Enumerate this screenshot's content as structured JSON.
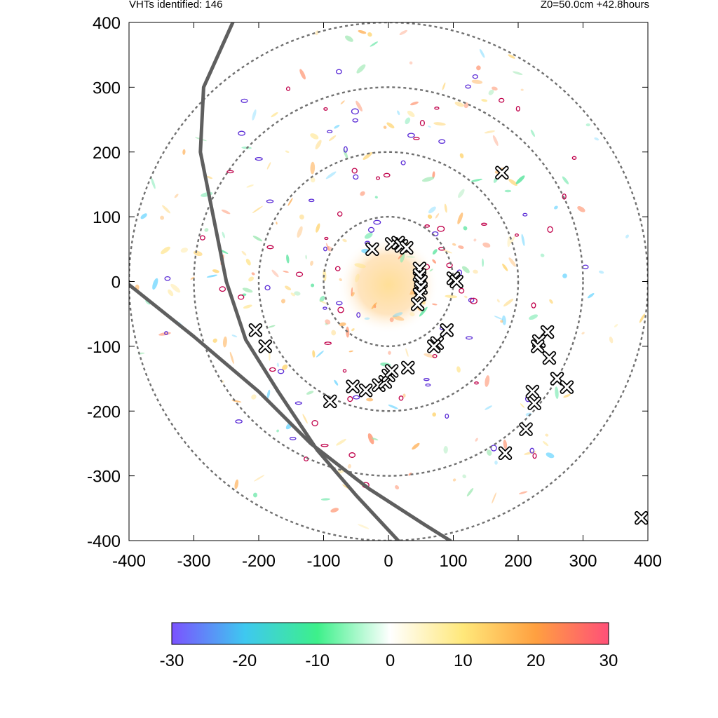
{
  "header": {
    "left_text": "VHTs identified: 146",
    "right_text": "Z0=50.0cm  +42.8hours"
  },
  "chart_data": {
    "type": "scatter",
    "title": "",
    "xlabel": "",
    "ylabel": "",
    "xlim": [
      -400,
      400
    ],
    "ylim": [
      -400,
      400
    ],
    "x_ticks": [
      -400,
      -300,
      -200,
      -100,
      0,
      100,
      200,
      300,
      400
    ],
    "y_ticks": [
      -400,
      -300,
      -200,
      -100,
      0,
      100,
      200,
      300,
      400
    ],
    "x_tick_labels": [
      "-400",
      "-300",
      "-200",
      "-100",
      "0",
      "100",
      "200",
      "300",
      "400"
    ],
    "y_tick_labels": [
      "-400",
      "-300",
      "-200",
      "-100",
      "0",
      "100",
      "200",
      "300",
      "400"
    ],
    "grid": false,
    "range_rings_radius": [
      100,
      200,
      300,
      400
    ],
    "vht_count": 146,
    "vht_markers": [
      [
        -25,
        50
      ],
      [
        5,
        58
      ],
      [
        15,
        60
      ],
      [
        20,
        55
      ],
      [
        28,
        52
      ],
      [
        48,
        20
      ],
      [
        48,
        10
      ],
      [
        50,
        0
      ],
      [
        50,
        -10
      ],
      [
        48,
        -20
      ],
      [
        45,
        -35
      ],
      [
        100,
        5
      ],
      [
        105,
        0
      ],
      [
        90,
        -75
      ],
      [
        75,
        -95
      ],
      [
        70,
        -100
      ],
      [
        -205,
        -75
      ],
      [
        -190,
        -100
      ],
      [
        -90,
        -185
      ],
      [
        -55,
        -162
      ],
      [
        -35,
        -168
      ],
      [
        -15,
        -160
      ],
      [
        -5,
        -155
      ],
      [
        0,
        -145
      ],
      [
        5,
        -138
      ],
      [
        30,
        -133
      ],
      [
        175,
        168
      ],
      [
        245,
        -78
      ],
      [
        232,
        -92
      ],
      [
        230,
        -100
      ],
      [
        248,
        -118
      ],
      [
        260,
        -150
      ],
      [
        275,
        -163
      ],
      [
        222,
        -170
      ],
      [
        225,
        -188
      ],
      [
        212,
        -228
      ],
      [
        180,
        -265
      ],
      [
        390,
        -365
      ]
    ],
    "track_lines": [
      {
        "points": [
          [
            -400,
            -5
          ],
          [
            -300,
            -85
          ],
          [
            -200,
            -170
          ],
          [
            -120,
            -250
          ],
          [
            -30,
            -320
          ],
          [
            55,
            -375
          ],
          [
            95,
            -400
          ]
        ]
      },
      {
        "points": [
          [
            -240,
            400
          ],
          [
            -285,
            300
          ],
          [
            -290,
            200
          ],
          [
            -270,
            100
          ],
          [
            -250,
            0
          ],
          [
            -220,
            -90
          ],
          [
            -170,
            -170
          ],
          [
            -110,
            -260
          ],
          [
            -50,
            -330
          ],
          [
            15,
            -400
          ]
        ]
      }
    ],
    "colorbar": {
      "min": -30,
      "max": 30,
      "ticks": [
        -30,
        -20,
        -10,
        0,
        10,
        20,
        30
      ],
      "tick_labels": [
        "-30",
        "-20",
        "-10",
        "0",
        "10",
        "20",
        "30"
      ],
      "colors": [
        "#7b52ff",
        "#3ec8f0",
        "#3df08a",
        "#ffffff",
        "#ffe87a",
        "#ffa040",
        "#ff5078"
      ]
    }
  }
}
